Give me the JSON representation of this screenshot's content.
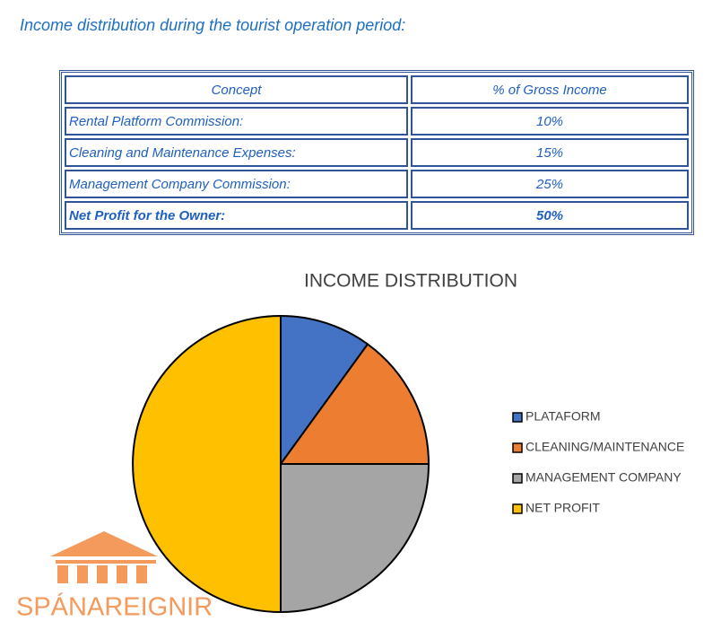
{
  "heading": "Income distribution during the tourist operation period:",
  "table": {
    "header": [
      "Concept",
      "% of Gross Income"
    ],
    "rows": [
      [
        "Rental Platform Commission:",
        "10%"
      ],
      [
        "Cleaning and Maintenance Expenses:",
        "15%"
      ],
      [
        "Management Company Commission:",
        "25%"
      ],
      [
        "Net Profit for the Owner:",
        "50%"
      ]
    ]
  },
  "chart_data": {
    "type": "pie",
    "title": "INCOME DISTRIBUTION",
    "categories": [
      "PLATAFORM",
      "CLEANING/MAINTENANCE",
      "MANAGEMENT COMPANY",
      "NET PROFIT"
    ],
    "values": [
      10,
      15,
      25,
      50
    ],
    "colors": [
      "#4472c4",
      "#ed7d31",
      "#a5a5a5",
      "#ffc000"
    ],
    "legend": "right"
  },
  "logo": {
    "text": "SPÁNAREIGNIR"
  }
}
